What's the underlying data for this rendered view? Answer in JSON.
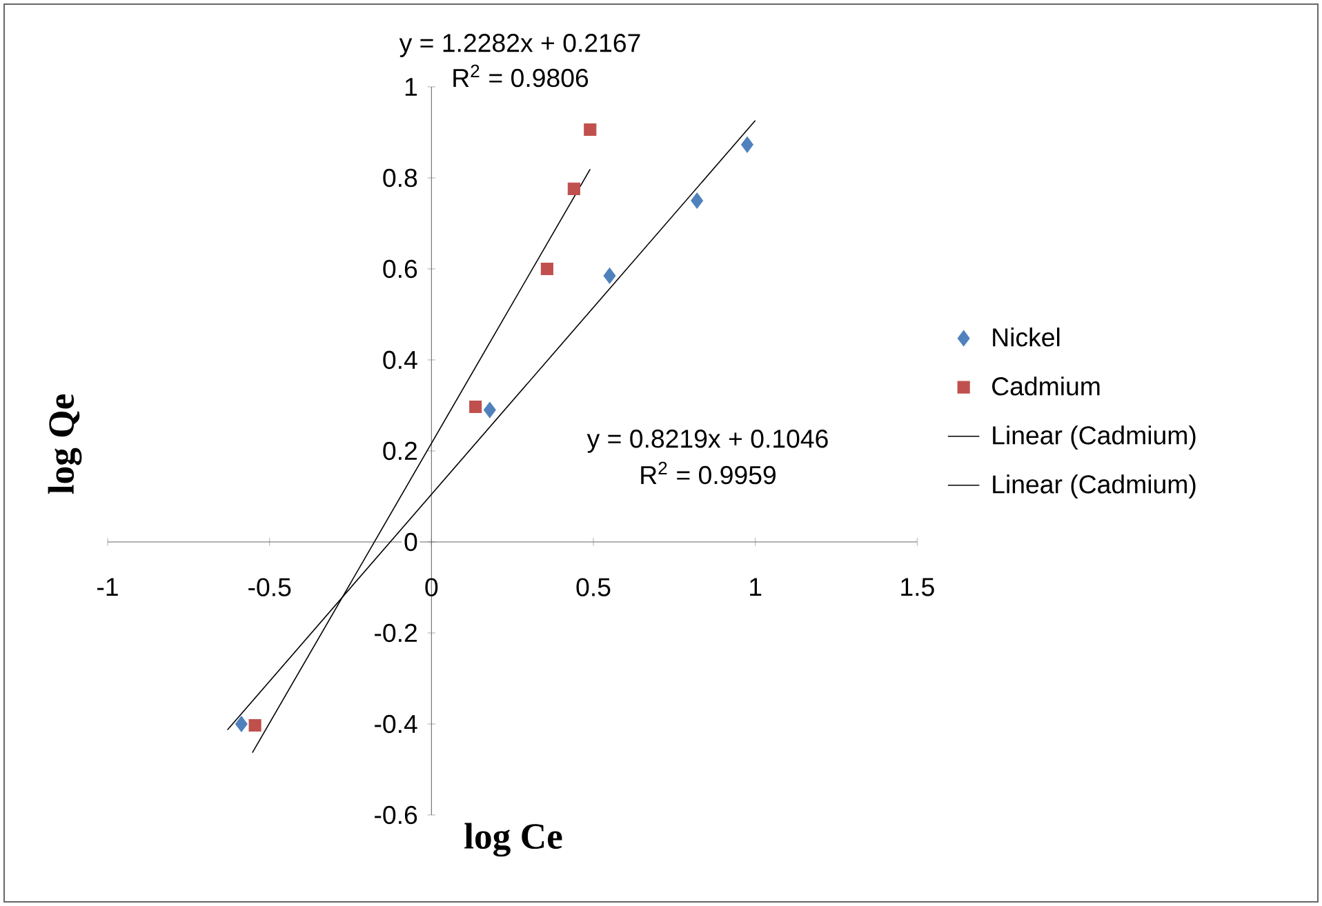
{
  "chart_data": {
    "type": "scatter",
    "xlabel": "log Ce",
    "ylabel": "log Qe",
    "xlim": [
      -1,
      1.5
    ],
    "ylim": [
      -0.6,
      1
    ],
    "xticks": [
      -1,
      -0.5,
      0,
      0.5,
      1,
      1.5
    ],
    "yticks": [
      -0.6,
      -0.4,
      -0.2,
      0,
      0.2,
      0.4,
      0.6,
      0.8,
      1
    ],
    "grid": false,
    "legend": "right",
    "series": [
      {
        "name": "Nickel",
        "color": "#4f81bd",
        "marker": "diamond",
        "x": [
          -0.587,
          0.18,
          0.55,
          0.82,
          0.975
        ],
        "values": [
          -0.4,
          0.29,
          0.585,
          0.75,
          0.873
        ]
      },
      {
        "name": "Cadmium",
        "color": "#c0504d",
        "marker": "square",
        "x": [
          -0.545,
          0.136,
          0.357,
          0.44,
          0.49
        ],
        "values": [
          -0.403,
          0.297,
          0.6,
          0.776,
          0.906
        ]
      },
      {
        "name": "Linear (Cadmium)",
        "type": "line",
        "color": "#000000",
        "marker": "none",
        "x": [
          -0.553,
          0.49
        ],
        "values": [
          -0.463,
          0.819
        ]
      },
      {
        "name": "Linear (Cadmium)",
        "type": "line",
        "color": "#000000",
        "marker": "none",
        "x": [
          -0.63,
          1.0
        ],
        "values": [
          -0.413,
          0.926
        ]
      }
    ],
    "annotations": [
      "y = 1.2282x + 0.2167",
      "R$^{2}$ = 0.9806",
      "y = 0.8219x + 0.1046",
      "R$^{2}$ = 0.9959"
    ]
  }
}
